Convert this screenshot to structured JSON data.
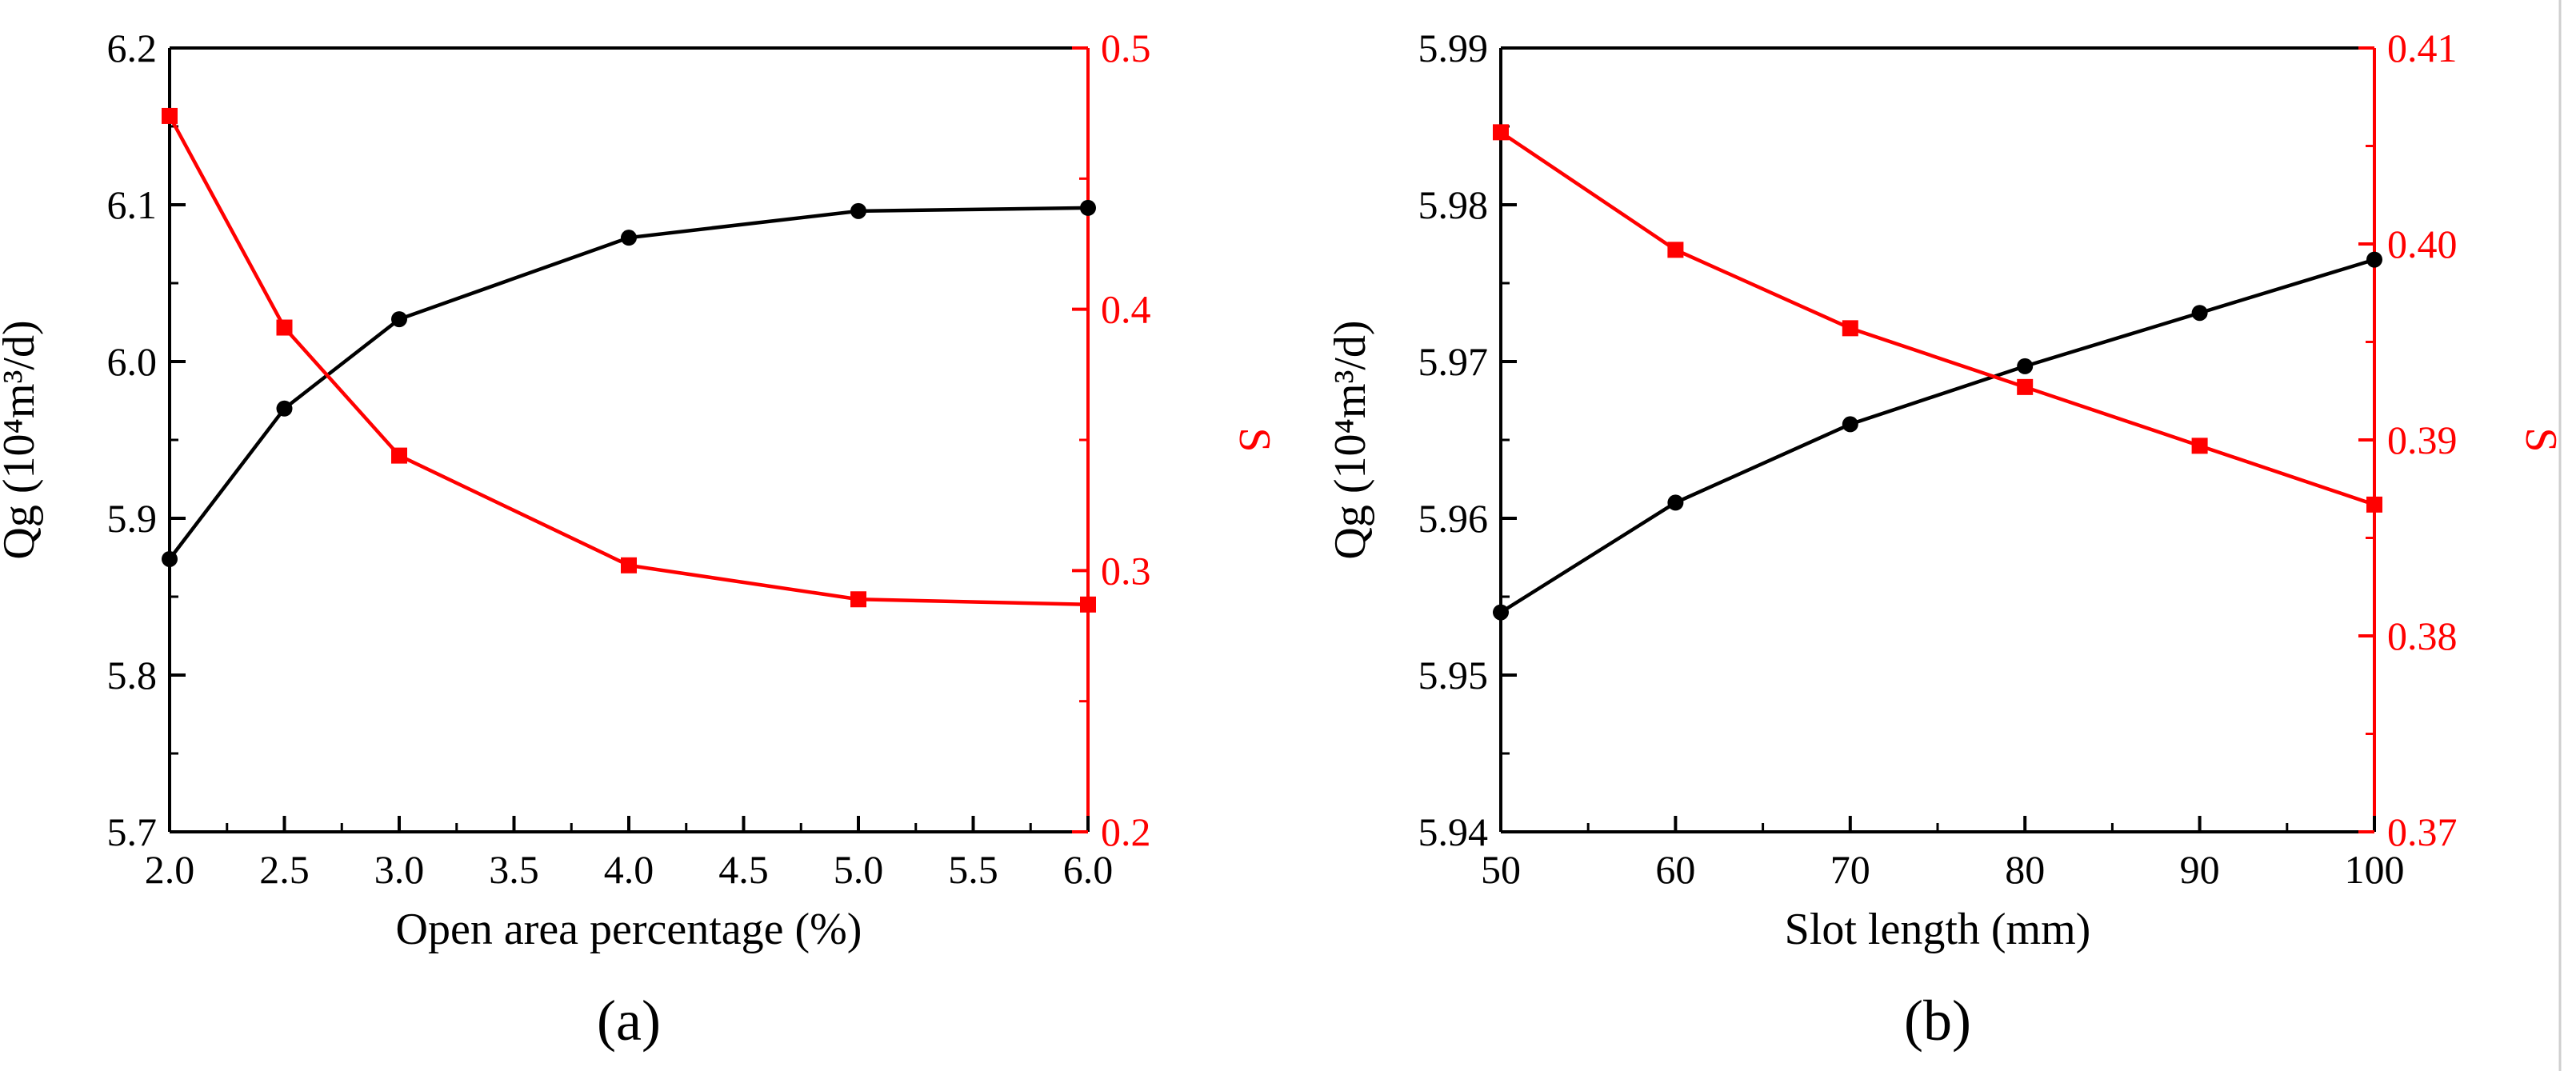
{
  "chart_data": [
    {
      "id": "a",
      "type": "line",
      "panel_label": "(a)",
      "xlabel": "Open area percentage (%)",
      "ylabel_left": "Qg (10⁴m³/d)",
      "ylabel_right": "S",
      "xlim": [
        2.0,
        6.0
      ],
      "xticks": [
        "2.0",
        "2.5",
        "3.0",
        "3.5",
        "4.0",
        "4.5",
        "5.0",
        "5.5",
        "6.0"
      ],
      "ylim_left": [
        5.7,
        6.2
      ],
      "yticks_left": [
        "5.7",
        "5.8",
        "5.9",
        "6.0",
        "6.1",
        "6.2"
      ],
      "ylim_right": [
        0.2,
        0.5
      ],
      "yticks_right": [
        "0.2",
        "0.3",
        "0.4",
        "0.5"
      ],
      "series": [
        {
          "name": "Qg",
          "axis": "left",
          "color": "#000000",
          "marker": "circle",
          "x": [
            2.0,
            2.5,
            3.0,
            4.0,
            5.0,
            6.0
          ],
          "values": [
            5.874,
            5.97,
            6.027,
            6.079,
            6.096,
            6.098
          ]
        },
        {
          "name": "S",
          "axis": "right",
          "color": "#ff0000",
          "marker": "square",
          "x": [
            2.0,
            2.5,
            3.0,
            4.0,
            5.0,
            6.0
          ],
          "values": [
            0.474,
            0.393,
            0.344,
            0.302,
            0.289,
            0.287
          ]
        }
      ]
    },
    {
      "id": "b",
      "type": "line",
      "panel_label": "(b)",
      "xlabel": "Slot length (mm)",
      "ylabel_left": "Qg (10⁴m³/d)",
      "ylabel_right": "S",
      "xlim": [
        50,
        100
      ],
      "xticks": [
        "50",
        "60",
        "70",
        "80",
        "90",
        "100"
      ],
      "ylim_left": [
        5.94,
        5.99
      ],
      "yticks_left": [
        "5.94",
        "5.95",
        "5.96",
        "5.97",
        "5.98",
        "5.99"
      ],
      "ylim_right": [
        0.37,
        0.41
      ],
      "yticks_right": [
        "0.37",
        "0.38",
        "0.39",
        "0.40",
        "0.41"
      ],
      "series": [
        {
          "name": "Qg",
          "axis": "left",
          "color": "#000000",
          "marker": "circle",
          "x": [
            50,
            60,
            70,
            80,
            90,
            100
          ],
          "values": [
            5.954,
            5.961,
            5.966,
            5.9697,
            5.9731,
            5.9765
          ]
        },
        {
          "name": "S",
          "axis": "right",
          "color": "#ff0000",
          "marker": "square",
          "x": [
            50,
            60,
            70,
            80,
            90,
            100
          ],
          "values": [
            0.4057,
            0.3997,
            0.3957,
            0.3927,
            0.3897,
            0.3867
          ]
        }
      ]
    }
  ]
}
